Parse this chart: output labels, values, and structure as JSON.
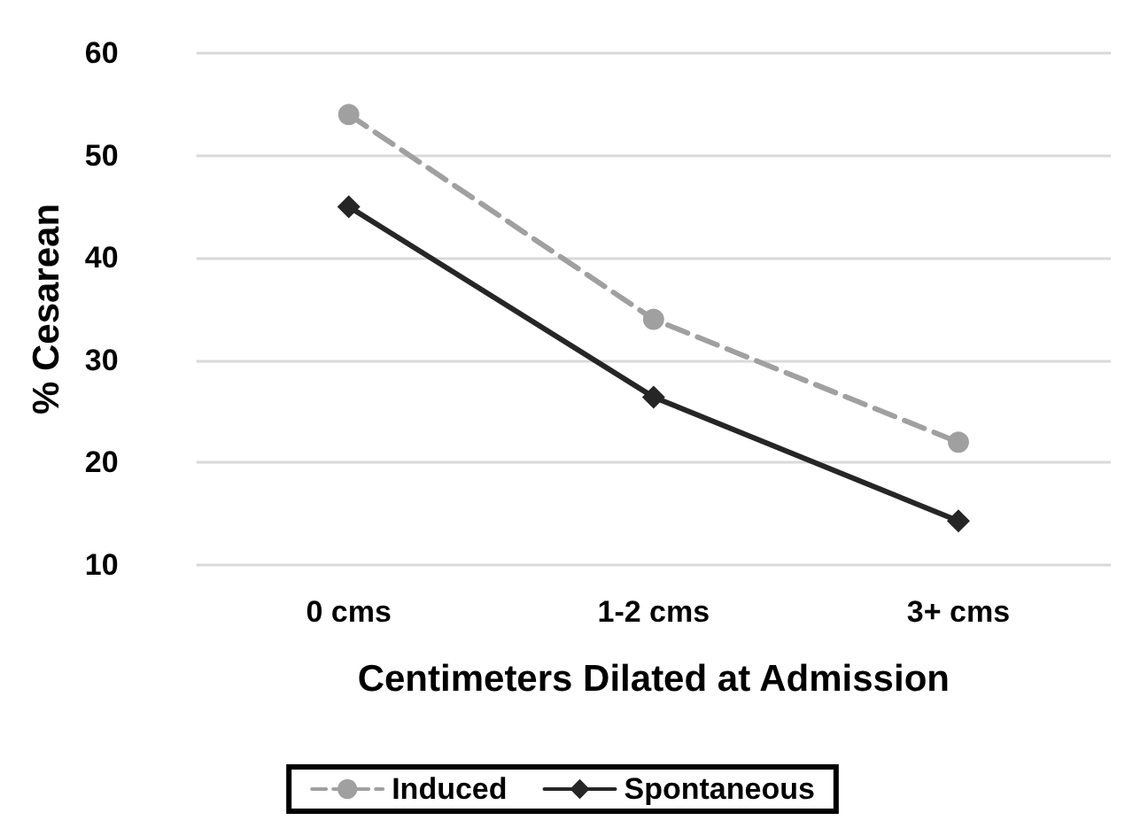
{
  "chart_data": {
    "type": "line",
    "xlabel": "Centimeters Dilated at Admission",
    "ylabel": "% Cesarean",
    "categories": [
      "0 cms",
      "1-2 cms",
      "3+ cms"
    ],
    "series": [
      {
        "name": "Induced",
        "color": "#a0a0a0",
        "values": [
          54,
          34,
          22
        ],
        "marker": "circle",
        "line_style": "dashed"
      },
      {
        "name": "Spontaneous",
        "color": "#262626",
        "values": [
          45,
          26.4,
          14.3
        ],
        "marker": "diamond",
        "line_style": "solid"
      }
    ],
    "ylim": [
      10,
      60
    ],
    "yticks": [
      10,
      20,
      30,
      40,
      50,
      60
    ],
    "grid": "y",
    "legend": "bottom"
  }
}
